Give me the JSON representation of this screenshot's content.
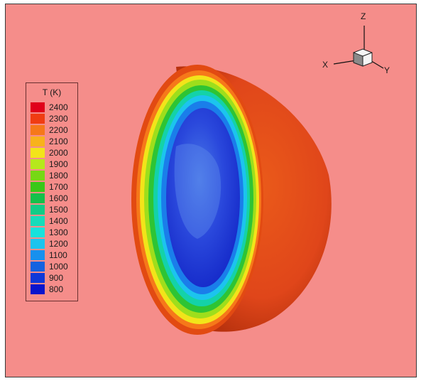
{
  "background_color": "#f58d8a",
  "legend": {
    "title": "T (K)",
    "entries": [
      {
        "label": "2400",
        "color": "#e0001a"
      },
      {
        "label": "2300",
        "color": "#f03c12"
      },
      {
        "label": "2200",
        "color": "#f6781a"
      },
      {
        "label": "2100",
        "color": "#f8b21c"
      },
      {
        "label": "2000",
        "color": "#f2e41a"
      },
      {
        "label": "1900",
        "color": "#b6e81c"
      },
      {
        "label": "1800",
        "color": "#76d814"
      },
      {
        "label": "1700",
        "color": "#3ac818"
      },
      {
        "label": "1600",
        "color": "#14c04a"
      },
      {
        "label": "1500",
        "color": "#10cc86"
      },
      {
        "label": "1400",
        "color": "#16dcba"
      },
      {
        "label": "1300",
        "color": "#18e2dc"
      },
      {
        "label": "1200",
        "color": "#1cc4ee"
      },
      {
        "label": "1100",
        "color": "#1890ee"
      },
      {
        "label": "1000",
        "color": "#1462e0"
      },
      {
        "label": "900",
        "color": "#1038d8"
      },
      {
        "label": "800",
        "color": "#0a14cc"
      }
    ]
  },
  "axes_triad": {
    "x_label": "X",
    "y_label": "Y",
    "z_label": "Z"
  },
  "shell_colors": {
    "outer": "#e24a12",
    "outer_shadow": "#b82a08",
    "inner_cold": "#1d35d6",
    "inner_light": "#3f6ae6"
  }
}
